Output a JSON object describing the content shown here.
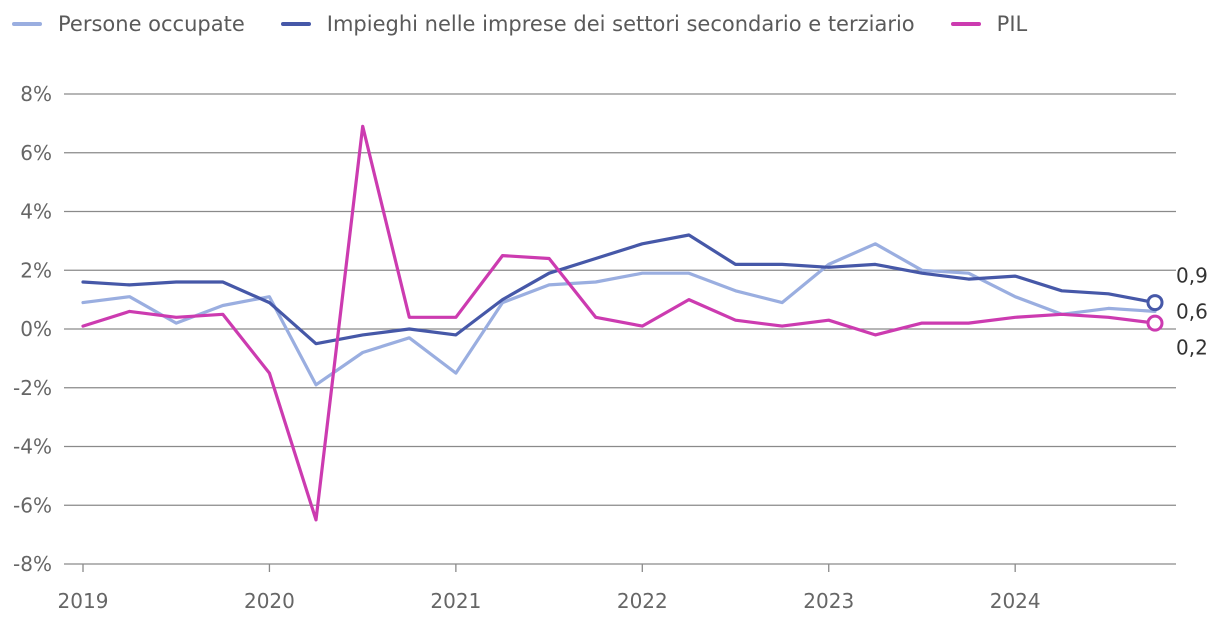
{
  "chart_data": {
    "type": "line",
    "title": "",
    "xlabel": "",
    "ylabel": "",
    "ylim": [
      -8,
      8
    ],
    "yticks": [
      -8,
      -6,
      -4,
      -2,
      0,
      2,
      4,
      6,
      8
    ],
    "ytick_labels": [
      "-8%",
      "-6%",
      "-4%",
      "-2%",
      "0%",
      "2%",
      "4%",
      "6%",
      "8%"
    ],
    "xlim": [
      2019.0,
      2024.75
    ],
    "xticks": [
      2019,
      2020,
      2021,
      2022,
      2023,
      2024
    ],
    "xtick_labels": [
      "2019",
      "2020",
      "2021",
      "2022",
      "2023",
      "2024"
    ],
    "grid": "horizontal",
    "legend_position": "top-left",
    "x": [
      2019.0,
      2019.25,
      2019.5,
      2019.75,
      2020.0,
      2020.25,
      2020.5,
      2020.75,
      2021.0,
      2021.25,
      2021.5,
      2021.75,
      2022.0,
      2022.25,
      2022.5,
      2022.75,
      2023.0,
      2023.25,
      2023.5,
      2023.75,
      2024.0,
      2024.25,
      2024.5,
      2024.75
    ],
    "series": [
      {
        "name": "Persone occupate",
        "color": "#9aaee0",
        "values": [
          0.9,
          1.1,
          0.2,
          0.8,
          1.1,
          -1.9,
          -0.8,
          -0.3,
          -1.5,
          0.9,
          1.5,
          1.6,
          1.9,
          1.9,
          1.3,
          0.9,
          2.2,
          2.9,
          2.0,
          1.9,
          1.1,
          0.5,
          0.7,
          0.6
        ],
        "end_label": "0,6"
      },
      {
        "name": "Impieghi nelle imprese dei settori secondario e terziario",
        "color": "#4658a8",
        "values": [
          1.6,
          1.5,
          1.6,
          1.6,
          0.9,
          -0.5,
          -0.2,
          0.0,
          -0.2,
          1.0,
          1.9,
          2.4,
          2.9,
          3.2,
          2.2,
          2.2,
          2.1,
          2.2,
          1.9,
          1.7,
          1.8,
          1.3,
          1.2,
          0.9
        ],
        "end_label": "0,9",
        "end_marker": true
      },
      {
        "name": "PIL",
        "color": "#cc3bb0",
        "values": [
          0.1,
          0.6,
          0.4,
          0.5,
          -1.5,
          -6.5,
          6.9,
          0.4,
          0.4,
          2.5,
          2.4,
          0.4,
          0.1,
          1.0,
          0.3,
          0.1,
          0.3,
          -0.2,
          0.2,
          0.2,
          0.4,
          0.5,
          0.4,
          0.2
        ],
        "end_label": "0,2",
        "end_marker": true
      }
    ]
  },
  "colors": {
    "grid": "#8a8a8a",
    "axis_text": "#666666"
  }
}
